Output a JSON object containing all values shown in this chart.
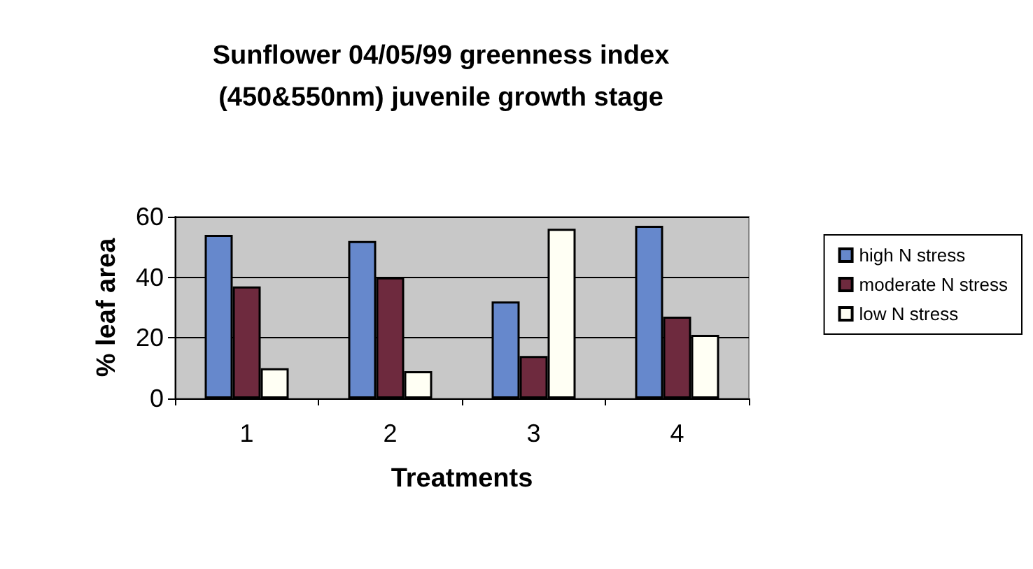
{
  "chart_data": {
    "type": "bar",
    "title": "Sunflower 04/05/99 greenness index\n(450&550nm) juvenile growth stage",
    "xlabel": "Treatments",
    "ylabel": "% leaf area",
    "categories": [
      "1",
      "2",
      "3",
      "4"
    ],
    "series": [
      {
        "name": "high N stress",
        "color": "#6688cc",
        "values": [
          54,
          52,
          32,
          57
        ]
      },
      {
        "name": "moderate N stress",
        "color": "#6e2a3e",
        "values": [
          37,
          40,
          14,
          27
        ]
      },
      {
        "name": "low N stress",
        "color": "#fffff4",
        "values": [
          10,
          9,
          56,
          21
        ]
      }
    ],
    "ylim": [
      0,
      60
    ],
    "yticks": [
      0,
      20,
      40,
      60
    ],
    "grid": "y",
    "legend": "right"
  }
}
